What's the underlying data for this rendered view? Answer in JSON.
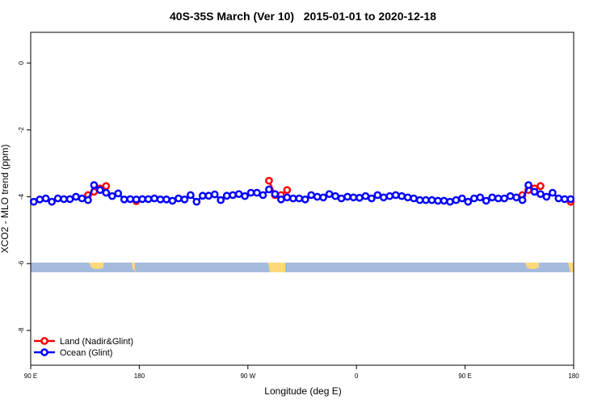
{
  "chart_data": {
    "type": "line",
    "title": "40S-35S March (Ver 10)   2015-01-01 to 2020-12-18",
    "x_label": "Longitude (deg E)",
    "y_label": "XCO2 - MLO trend (ppm)",
    "x": [
      92.5,
      97.5,
      102.5,
      107.5,
      112.5,
      117.5,
      122.5,
      127.5,
      132.5,
      137.5,
      142.5,
      147.5,
      152.5,
      157.5,
      162.5,
      167.5,
      172.5,
      177.5,
      182.5,
      187.5,
      192.5,
      197.5,
      202.5,
      207.5,
      212.5,
      217.5,
      222.5,
      227.5,
      232.5,
      237.5,
      242.5,
      247.5,
      252.5,
      257.5,
      262.5,
      267.5,
      272.5,
      277.5,
      282.5,
      287.5,
      292.5,
      297.5,
      302.5,
      307.5,
      312.5,
      317.5,
      322.5,
      327.5,
      332.5,
      337.5,
      342.5,
      347.5,
      352.5,
      357.5,
      362.5,
      367.5,
      372.5,
      377.5,
      382.5,
      387.5,
      392.5,
      397.5,
      402.5,
      407.5,
      412.5,
      417.5,
      422.5,
      427.5,
      432.5,
      437.5,
      442.5,
      447.5,
      452.5,
      457.5,
      462.5,
      467.5,
      472.5,
      477.5,
      482.5,
      487.5,
      492.5,
      497.5,
      502.5,
      507.5,
      512.5,
      517.5,
      522.5,
      527.5,
      532.5,
      537.5
    ],
    "series": [
      {
        "name": "Land (Nadir&Glint)",
        "color": "#ff0000",
        "values": [
          null,
          null,
          null,
          null,
          null,
          null,
          null,
          null,
          null,
          -3.95,
          -3.85,
          -3.75,
          -3.68,
          null,
          null,
          null,
          null,
          -4.13,
          null,
          null,
          null,
          null,
          null,
          null,
          null,
          null,
          null,
          null,
          null,
          null,
          null,
          null,
          null,
          null,
          null,
          null,
          null,
          null,
          null,
          -3.52,
          -3.95,
          -3.95,
          -3.8,
          null,
          null,
          null,
          null,
          null,
          null,
          null,
          null,
          null,
          null,
          null,
          null,
          null,
          null,
          null,
          null,
          null,
          null,
          null,
          null,
          null,
          null,
          null,
          null,
          null,
          null,
          null,
          null,
          null,
          null,
          null,
          null,
          null,
          null,
          null,
          null,
          null,
          null,
          -3.95,
          -3.8,
          -3.75,
          -3.68,
          null,
          null,
          null,
          null,
          -4.15
        ]
      },
      {
        "name": "Ocean (Glint)",
        "color": "#0000ff",
        "values": [
          -4.15,
          -4.08,
          -4.05,
          -4.15,
          -4.05,
          -4.07,
          -4.07,
          -4.0,
          -4.05,
          -4.1,
          -3.65,
          -3.8,
          -3.88,
          -3.98,
          -3.9,
          -4.08,
          -4.07,
          -4.08,
          -4.07,
          -4.07,
          -4.05,
          -4.08,
          -4.08,
          -4.12,
          -4.05,
          -4.08,
          -3.95,
          -4.15,
          -3.97,
          -3.97,
          -3.93,
          -4.1,
          -3.97,
          -3.95,
          -3.92,
          -3.98,
          -3.88,
          -3.88,
          -3.95,
          -3.78,
          -3.92,
          -4.08,
          -4.02,
          -4.05,
          -4.05,
          -4.08,
          -3.95,
          -4.0,
          -4.02,
          -3.92,
          -3.98,
          -4.05,
          -4.0,
          -4.02,
          -4.03,
          -3.98,
          -4.05,
          -3.95,
          -4.02,
          -3.98,
          -3.95,
          -3.98,
          -4.02,
          -4.05,
          -4.1,
          -4.1,
          -4.1,
          -4.12,
          -4.12,
          -4.15,
          -4.1,
          -4.05,
          -4.15,
          -4.05,
          -4.02,
          -4.12,
          -4.02,
          -4.05,
          -4.05,
          -3.98,
          -4.02,
          -4.1,
          -3.65,
          -3.85,
          -3.92,
          -4.0,
          -3.88,
          -4.05,
          -4.07,
          -4.07
        ]
      }
    ],
    "xlim": [
      90,
      540
    ],
    "xticks": [
      {
        "value": 90,
        "label": "90 E"
      },
      180,
      {
        "value": 270,
        "label": "90 W"
      },
      {
        "value": 360,
        "label": "0"
      },
      {
        "value": 450,
        "label": "90 E"
      },
      {
        "value": 540,
        "label": "180"
      }
    ],
    "ylim": [
      -9.04,
      0.92
    ],
    "yticks": [
      0,
      -2,
      -4,
      -6,
      -8
    ],
    "legend": "bottom-left"
  }
}
